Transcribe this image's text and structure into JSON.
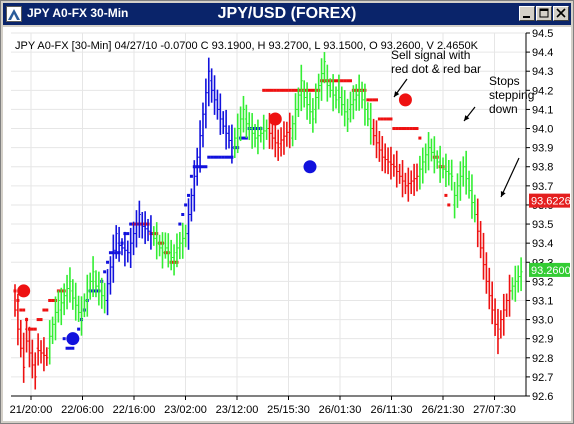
{
  "window": {
    "title": "JPY A0-FX 30-Min",
    "colors": {
      "titlebar": "#0a246a",
      "plot_bg": "#ffffff",
      "grid": "#e6e6e6"
    }
  },
  "chart_data": {
    "type": "bar",
    "title": "JPY/USD (FOREX)",
    "info_line": "JPY A0-FX [30-Min] 04/27/10 -0.0700 C 93.1900, H 93.2700, L 93.1500, O 93.2600, V 2.4650K",
    "ylim": [
      92.6,
      94.5
    ],
    "y_ticks": [
      92.6,
      92.7,
      92.8,
      92.9,
      93.0,
      93.1,
      93.2,
      93.3,
      93.4,
      93.5,
      93.6,
      93.7,
      93.8,
      93.9,
      94.0,
      94.1,
      94.2,
      94.3,
      94.4,
      94.5
    ],
    "x_tick_labels": [
      "21/20:00",
      "22/06:00",
      "22/16:00",
      "23/02:00",
      "23/12:00",
      "25/15:30",
      "26/01:30",
      "26/11:30",
      "26/21:30",
      "27/07:30"
    ],
    "price_tags": [
      {
        "value": 93.6226,
        "label": "93.6226",
        "color": "#e41e1e"
      },
      {
        "value": 93.26,
        "label": "93.2600",
        "color": "#33cc33"
      }
    ],
    "annotations": [
      {
        "id": "sell",
        "lines": [
          "Sell signal with",
          "red dot & red bar"
        ]
      },
      {
        "id": "stops",
        "lines": [
          "Stops",
          "stepping",
          "down"
        ]
      }
    ],
    "bar_colors": {
      "up": "#33ee33",
      "down": "#ee1111",
      "strong": "#1111dd"
    },
    "segments": [
      {
        "color": "down",
        "points": [
          [
            93.15,
            92.75
          ],
          [
            92.95,
            92.7
          ],
          [
            92.85,
            92.8
          ]
        ]
      },
      {
        "color": "up",
        "points": [
          [
            92.85,
            93.1
          ],
          [
            93.05,
            93.2
          ],
          [
            93.15,
            93.0
          ],
          [
            93.05,
            93.25
          ],
          [
            93.2,
            93.1
          ]
        ]
      },
      {
        "color": "strong",
        "points": [
          [
            93.1,
            93.45
          ],
          [
            93.4,
            93.35
          ],
          [
            93.35,
            93.55
          ],
          [
            93.5,
            93.45
          ]
        ]
      },
      {
        "color": "up",
        "points": [
          [
            93.45,
            93.35
          ],
          [
            93.4,
            93.3
          ],
          [
            93.35,
            93.45
          ]
        ]
      },
      {
        "color": "strong",
        "points": [
          [
            93.45,
            93.85
          ],
          [
            93.85,
            94.3
          ],
          [
            94.25,
            94.05
          ],
          [
            94.05,
            93.9
          ]
        ]
      },
      {
        "color": "up",
        "points": [
          [
            93.9,
            94.1
          ],
          [
            94.05,
            93.95
          ],
          [
            93.95,
            94.0
          ]
        ]
      },
      {
        "color": "down",
        "points": [
          [
            94.0,
            93.9
          ],
          [
            93.92,
            94.0
          ]
        ]
      },
      {
        "color": "up",
        "points": [
          [
            93.95,
            94.25
          ],
          [
            94.2,
            94.05
          ],
          [
            94.1,
            94.35
          ],
          [
            94.25,
            94.15
          ],
          [
            94.2,
            94.05
          ],
          [
            94.1,
            94.2
          ],
          [
            94.2,
            94.0
          ]
        ]
      },
      {
        "color": "down",
        "points": [
          [
            94.0,
            93.85
          ],
          [
            93.85,
            93.8
          ],
          [
            93.8,
            93.7
          ],
          [
            93.7,
            93.75
          ]
        ]
      },
      {
        "color": "up",
        "points": [
          [
            93.75,
            93.9
          ],
          [
            93.9,
            93.8
          ],
          [
            93.8,
            93.75
          ]
        ]
      },
      {
        "color": "up",
        "points": [
          [
            93.6,
            93.8
          ],
          [
            93.8,
            93.55
          ]
        ]
      },
      {
        "color": "down",
        "points": [
          [
            93.55,
            93.2
          ],
          [
            93.2,
            92.9
          ],
          [
            92.95,
            93.15
          ]
        ]
      },
      {
        "color": "up",
        "points": [
          [
            93.15,
            93.25
          ]
        ]
      }
    ],
    "stop_dots": [
      {
        "color": "red",
        "from": 0,
        "to": 17,
        "values": [
          93.15,
          93.1,
          93.05,
          93.05,
          93.0,
          92.95,
          92.95,
          92.95,
          93.0,
          93.0,
          93.05,
          93.05,
          93.1,
          93.1,
          93.1,
          93.15,
          93.15,
          93.15
        ]
      },
      {
        "color": "blue",
        "from": 17,
        "to": 40,
        "values": [
          92.9,
          92.85,
          92.85,
          92.85,
          92.9,
          92.95,
          93.0,
          93.05,
          93.1,
          93.15,
          93.15,
          93.15,
          93.15,
          93.2,
          93.25,
          93.3,
          93.35,
          93.35,
          93.35,
          93.35,
          93.4,
          93.45,
          93.45,
          93.5
        ]
      },
      {
        "color": "red",
        "from": 41,
        "to": 56,
        "values": [
          93.5,
          93.5,
          93.5,
          93.5,
          93.5,
          93.5,
          93.45,
          93.45,
          93.45,
          93.4,
          93.4,
          93.35,
          93.35,
          93.3,
          93.3,
          93.3
        ]
      },
      {
        "color": "blue",
        "from": 57,
        "to": 85,
        "values": [
          93.5,
          93.55,
          93.6,
          93.65,
          93.75,
          93.8,
          93.8,
          93.8,
          93.8,
          93.8,
          93.85,
          93.85,
          93.85,
          93.85,
          93.85,
          93.85,
          93.85,
          93.85,
          93.85,
          93.9,
          93.9,
          93.95,
          93.95,
          93.95,
          94.0,
          94.0,
          94.0,
          94.0,
          94.0
        ]
      },
      {
        "color": "red",
        "from": 86,
        "to": 140,
        "values": [
          94.2,
          94.2,
          94.2,
          94.2,
          94.2,
          94.2,
          94.2,
          94.2,
          94.2,
          94.2,
          94.2,
          94.2,
          94.2,
          94.2,
          94.2,
          94.2,
          94.2,
          94.2,
          94.2,
          94.2,
          94.25,
          94.25,
          94.25,
          94.25,
          94.25,
          94.25,
          94.25,
          94.25,
          94.25,
          94.25,
          94.25,
          94.2,
          94.2,
          94.2,
          94.2,
          94.2,
          94.15,
          94.15,
          94.15,
          94.15,
          94.05,
          94.05,
          94.05,
          94.05,
          94.05,
          94.0,
          94.0,
          94.0,
          94.0,
          94.0,
          94.0,
          94.0,
          94.0,
          94.0,
          93.95
        ]
      },
      {
        "color": "red",
        "from": 145,
        "to": 150,
        "values": [
          93.85,
          93.85,
          93.8,
          93.8,
          93.65,
          93.6
        ]
      }
    ],
    "signal_dots": [
      {
        "bar": 3,
        "value": 93.15,
        "color": "red"
      },
      {
        "bar": 20,
        "value": 92.9,
        "color": "blue"
      },
      {
        "bar": 90,
        "value": 94.05,
        "color": "red"
      },
      {
        "bar": 102,
        "value": 93.8,
        "color": "blue"
      },
      {
        "bar": 135,
        "value": 94.15,
        "color": "red"
      }
    ]
  }
}
